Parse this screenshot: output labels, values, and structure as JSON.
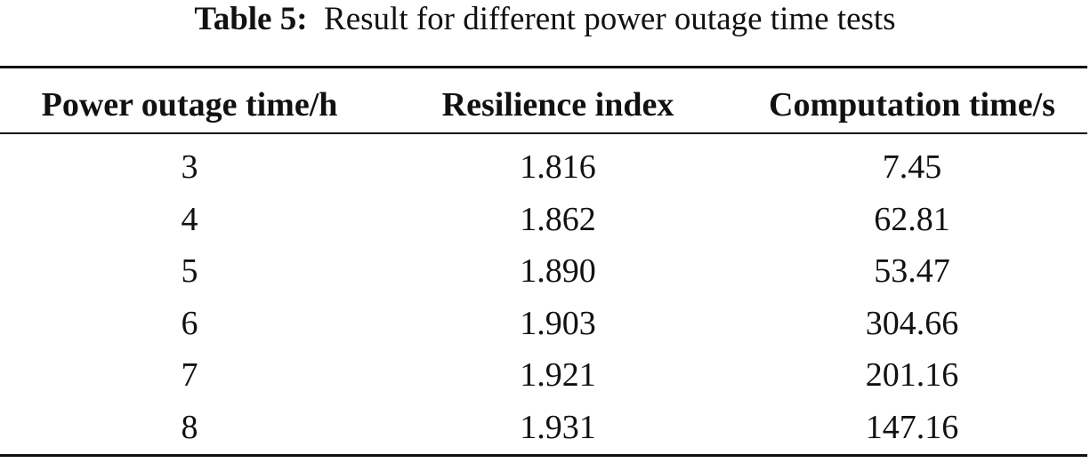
{
  "caption": {
    "label": "Table 5:",
    "text": "Result for different power outage time tests"
  },
  "table": {
    "header": [
      "Power outage time/h",
      "Resilience index",
      "Computation time/s"
    ],
    "rows": [
      [
        "3",
        "1.816",
        "7.45"
      ],
      [
        "4",
        "1.862",
        "62.81"
      ],
      [
        "5",
        "1.890",
        "53.47"
      ],
      [
        "6",
        "1.903",
        "304.66"
      ],
      [
        "7",
        "1.921",
        "201.16"
      ],
      [
        "8",
        "1.931",
        "147.16"
      ]
    ]
  }
}
